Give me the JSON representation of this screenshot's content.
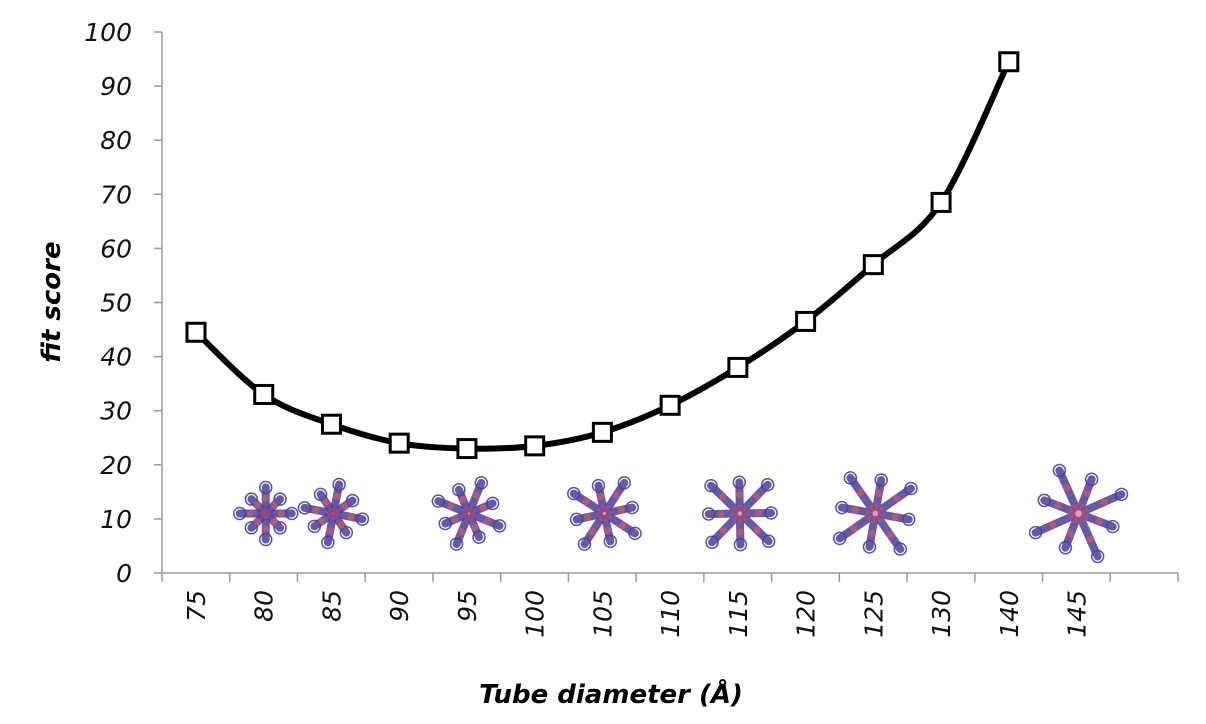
{
  "chart_data": {
    "type": "line",
    "title": "",
    "xlabel": "Tube diameter (Å)",
    "ylabel": "fit score",
    "ylim": [
      0,
      100
    ],
    "yticks": [
      0,
      10,
      20,
      30,
      40,
      50,
      60,
      70,
      80,
      90,
      100
    ],
    "categories": [
      "75",
      "80",
      "85",
      "90",
      "95",
      "100",
      "105",
      "110",
      "115",
      "120",
      "125",
      "130",
      "140",
      "145"
    ],
    "series": [
      {
        "values": [
          44.5,
          33,
          27.5,
          24,
          23,
          23.5,
          26,
          31,
          38,
          46.5,
          57,
          68.5,
          94.5,
          null
        ],
        "color": "#000000",
        "marker": "square"
      }
    ],
    "grid": false,
    "legend": "none",
    "insets": {
      "description": "cross-section renderings of tube models",
      "positions": [
        "80",
        "85",
        "95",
        "105",
        "115",
        "125",
        "145"
      ],
      "colors": {
        "outline": "#4b3d9c",
        "fill": "#c0566e"
      }
    }
  }
}
